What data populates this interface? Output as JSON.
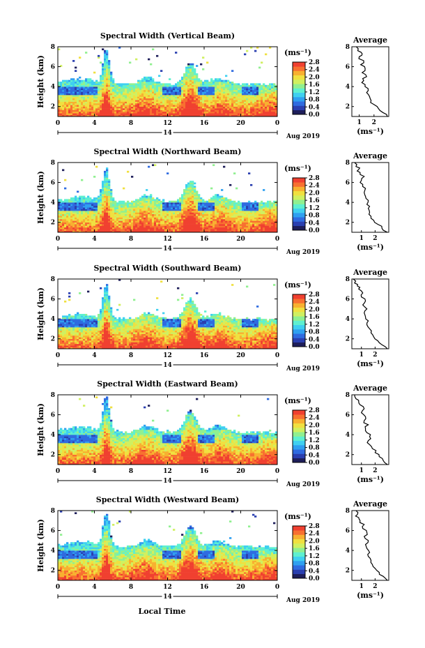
{
  "figure": {
    "xlabel": "Local Time",
    "date_label": "Aug 2019",
    "day_label": "14",
    "xticks": [
      "0",
      "4",
      "8",
      "12",
      "16",
      "20",
      "0"
    ],
    "yticks": [
      "2",
      "4",
      "6",
      "8"
    ],
    "ylabel": "Height (km)",
    "cb_title": "(ms⁻¹)",
    "cb_ticks": [
      "0.0",
      "0.4",
      "0.8",
      "1.2",
      "1.6",
      "2.0",
      "2.4",
      "2.8"
    ],
    "avg_title": "Average",
    "avg_xlabel": "(ms⁻¹)"
  },
  "chart_data": [
    {
      "type": "heatmap",
      "title": "Spectral Width (Vertical Beam)",
      "xlabel": "Local Time",
      "ylabel": "Height (km)",
      "xlim": [
        0,
        24
      ],
      "ylim": [
        1.0,
        8.0
      ],
      "colorbar": {
        "label": "(ms⁻¹)",
        "range": [
          0.0,
          2.8
        ]
      },
      "profile": {
        "title": "Average",
        "xlabel": "(ms⁻¹)",
        "xticks": [
          "1",
          "2"
        ],
        "xlim": [
          0.5,
          3.0
        ],
        "ylim": [
          1.0,
          8.0
        ],
        "x": [
          2.9,
          2.6,
          2.3,
          2.0,
          1.8,
          1.7,
          1.5,
          1.6,
          1.4,
          1.3,
          1.5,
          1.2,
          1.4,
          1.1,
          1.3,
          1.0,
          1.2,
          0.9,
          0.8
        ],
        "y": [
          1.0,
          1.4,
          1.8,
          2.2,
          2.6,
          3.0,
          3.4,
          3.8,
          4.2,
          4.6,
          5.0,
          5.4,
          5.8,
          6.2,
          6.6,
          7.0,
          7.3,
          7.6,
          8.0
        ]
      }
    },
    {
      "type": "heatmap",
      "title": "Spectral Width (Northward Beam)",
      "xlabel": "Local Time",
      "ylabel": "Height (km)",
      "xlim": [
        0,
        24
      ],
      "ylim": [
        1.0,
        8.0
      ],
      "colorbar": {
        "label": "(ms⁻¹)",
        "range": [
          0.0,
          2.8
        ]
      },
      "profile": {
        "title": "Average",
        "xlabel": "(ms⁻¹)",
        "xticks": [
          "1",
          "2"
        ],
        "xlim": [
          0.3,
          3.0
        ],
        "ylim": [
          1.0,
          8.0
        ],
        "x": [
          2.9,
          2.5,
          2.2,
          1.9,
          1.7,
          1.6,
          1.5,
          1.4,
          1.5,
          1.3,
          1.2,
          1.3,
          1.1,
          1.0,
          1.2,
          0.9,
          0.8,
          0.6,
          0.5
        ],
        "y": [
          1.0,
          1.4,
          1.8,
          2.2,
          2.6,
          3.0,
          3.4,
          3.8,
          4.2,
          4.6,
          5.0,
          5.4,
          5.8,
          6.2,
          6.6,
          7.0,
          7.3,
          7.6,
          8.0
        ]
      }
    },
    {
      "type": "heatmap",
      "title": "Spectral Width (Southward Beam)",
      "xlabel": "Local Time",
      "ylabel": "Height (km)",
      "xlim": [
        0,
        24
      ],
      "ylim": [
        1.0,
        8.0
      ],
      "colorbar": {
        "label": "(ms⁻¹)",
        "range": [
          0.0,
          2.8
        ]
      },
      "profile": {
        "title": "Average",
        "xlabel": "(ms⁻¹)",
        "xticks": [
          "1",
          "2"
        ],
        "xlim": [
          0.3,
          3.0
        ],
        "ylim": [
          1.0,
          8.0
        ],
        "x": [
          2.9,
          2.5,
          2.2,
          1.9,
          1.7,
          1.6,
          1.4,
          1.5,
          1.3,
          1.2,
          1.4,
          1.1,
          1.3,
          1.0,
          1.1,
          0.8,
          0.7,
          0.5,
          0.4
        ],
        "y": [
          1.0,
          1.4,
          1.8,
          2.2,
          2.6,
          3.0,
          3.4,
          3.8,
          4.2,
          4.6,
          5.0,
          5.4,
          5.8,
          6.2,
          6.6,
          7.0,
          7.3,
          7.6,
          8.0
        ]
      }
    },
    {
      "type": "heatmap",
      "title": "Spectral Width (Eastward Beam)",
      "xlabel": "Local Time",
      "ylabel": "Height (km)",
      "xlim": [
        0,
        24
      ],
      "ylim": [
        1.0,
        8.0
      ],
      "colorbar": {
        "label": "(ms⁻¹)",
        "range": [
          0.0,
          2.8
        ]
      },
      "profile": {
        "title": "Average",
        "xlabel": "(ms⁻¹)",
        "xticks": [
          "1",
          "2"
        ],
        "xlim": [
          0.3,
          3.0
        ],
        "ylim": [
          1.0,
          8.0
        ],
        "x": [
          2.9,
          2.6,
          2.3,
          2.0,
          1.8,
          1.6,
          1.5,
          1.6,
          1.4,
          1.3,
          1.5,
          1.2,
          1.3,
          1.0,
          1.2,
          0.9,
          0.8,
          0.6,
          0.5
        ],
        "y": [
          1.0,
          1.4,
          1.8,
          2.2,
          2.6,
          3.0,
          3.4,
          3.8,
          4.2,
          4.6,
          5.0,
          5.4,
          5.8,
          6.2,
          6.6,
          7.0,
          7.3,
          7.6,
          8.0
        ]
      }
    },
    {
      "type": "heatmap",
      "title": "Spectral Width (Westward Beam)",
      "xlabel": "Local Time",
      "ylabel": "Height (km)",
      "xlim": [
        0,
        24
      ],
      "ylim": [
        1.0,
        8.0
      ],
      "colorbar": {
        "label": "(ms⁻¹)",
        "range": [
          0.0,
          2.8
        ]
      },
      "profile": {
        "title": "Average",
        "xlabel": "(ms⁻¹)",
        "xticks": [
          "1",
          "2"
        ],
        "xlim": [
          0.3,
          3.0
        ],
        "ylim": [
          1.0,
          8.0
        ],
        "x": [
          2.9,
          2.6,
          2.3,
          2.0,
          1.8,
          1.7,
          1.5,
          1.6,
          1.4,
          1.3,
          1.5,
          1.2,
          1.4,
          1.1,
          1.2,
          0.9,
          0.8,
          0.7,
          0.6
        ],
        "y": [
          1.0,
          1.4,
          1.8,
          2.2,
          2.6,
          3.0,
          3.4,
          3.8,
          4.2,
          4.6,
          5.0,
          5.4,
          5.8,
          6.2,
          6.6,
          7.0,
          7.3,
          7.6,
          8.0
        ]
      }
    }
  ],
  "colors": {
    "colormap": [
      "#1e1e5a",
      "#2a3fb0",
      "#2f6be0",
      "#2fa0f0",
      "#3fd0f0",
      "#5ef0d0",
      "#90f090",
      "#d0f060",
      "#f0e040",
      "#f8b030",
      "#f87030",
      "#f04030"
    ]
  }
}
